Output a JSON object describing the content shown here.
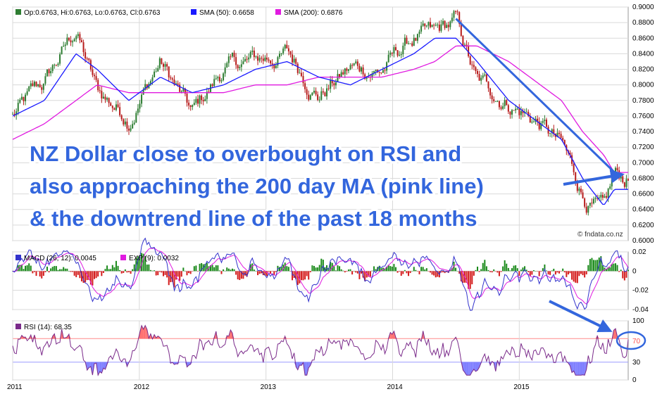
{
  "colors": {
    "up": "#2e7d32",
    "down": "#b71c1c",
    "sma50": "#1a1aff",
    "sma200": "#e01ae0",
    "macd": "#3333cc",
    "exp": "#e01ae0",
    "hist_pos": "#1b8a1b",
    "hist_neg": "#d41c1c",
    "rsi": "#7a2a8a",
    "overbought": "#ff7070",
    "oversold": "#8080ff",
    "annotation": "#3366dd",
    "grid": "#d9d9d9"
  },
  "legend": {
    "ohlc": "Op:0.6763, Hi:0.6763, Lo:0.6763, Cl:0.6763",
    "sma50": "SMA (50): 0.6658",
    "sma200": "SMA (200): 0.6876",
    "macd": "MACD (26, 12): 0.0045",
    "exp": "EXP (9): 0.0032",
    "rsi": "RSI (14): 68.35"
  },
  "watermark": "© fndata.co.nz",
  "annotation": {
    "lines": [
      "NZ Dollar close to overbought on RSI and",
      "also approaching the 200 day MA (pink line)",
      "& the downtrend line of the past 18 months"
    ]
  },
  "rsi_marker_label": "70",
  "chart_data": [
    {
      "type": "line",
      "name": "price",
      "x": [
        "2011-01",
        "2011-04",
        "2011-07",
        "2011-09",
        "2011-12",
        "2012-03",
        "2012-06",
        "2012-09",
        "2012-12",
        "2013-03",
        "2013-06",
        "2013-09",
        "2013-12",
        "2014-03",
        "2014-05",
        "2014-07",
        "2014-09",
        "2014-12",
        "2015-03",
        "2015-05",
        "2015-07",
        "2015-09",
        "2015-10"
      ],
      "close": [
        0.76,
        0.8,
        0.87,
        0.79,
        0.76,
        0.83,
        0.76,
        0.82,
        0.83,
        0.84,
        0.79,
        0.82,
        0.82,
        0.86,
        0.86,
        0.88,
        0.8,
        0.78,
        0.75,
        0.72,
        0.66,
        0.63,
        0.677
      ],
      "sma50": [
        0.76,
        0.78,
        0.84,
        0.82,
        0.78,
        0.81,
        0.79,
        0.8,
        0.82,
        0.83,
        0.81,
        0.8,
        0.82,
        0.84,
        0.86,
        0.86,
        0.83,
        0.78,
        0.75,
        0.73,
        0.68,
        0.645,
        0.6658
      ],
      "sma200": [
        0.73,
        0.75,
        0.78,
        0.8,
        0.79,
        0.79,
        0.79,
        0.79,
        0.8,
        0.8,
        0.81,
        0.81,
        0.81,
        0.82,
        0.83,
        0.85,
        0.85,
        0.83,
        0.8,
        0.78,
        0.74,
        0.71,
        0.6876
      ],
      "y_ticks": [
        0.6,
        0.62,
        0.64,
        0.66,
        0.68,
        0.7,
        0.72,
        0.74,
        0.76,
        0.78,
        0.8,
        0.82,
        0.84,
        0.86,
        0.88,
        0.9
      ],
      "ylim": [
        0.6,
        0.9
      ],
      "x_tick_labels": [
        "2011",
        "2012",
        "2013",
        "2014",
        "2015"
      ],
      "downtrend_line": {
        "from": [
          "2014-07",
          0.885
        ],
        "to": [
          "2015-10",
          0.688
        ]
      },
      "grid": true
    },
    {
      "type": "line",
      "name": "macd",
      "y_ticks": [
        -0.04,
        -0.02,
        0,
        0.02
      ],
      "ylim": [
        -0.04,
        0.02
      ],
      "last_macd": 0.0045,
      "last_exp": 0.0032
    },
    {
      "type": "line",
      "name": "rsi",
      "y_ticks": [
        0,
        30,
        70,
        100
      ],
      "ylim": [
        0,
        100
      ],
      "overbought": 70,
      "oversold": 30,
      "last": 68.35
    }
  ]
}
